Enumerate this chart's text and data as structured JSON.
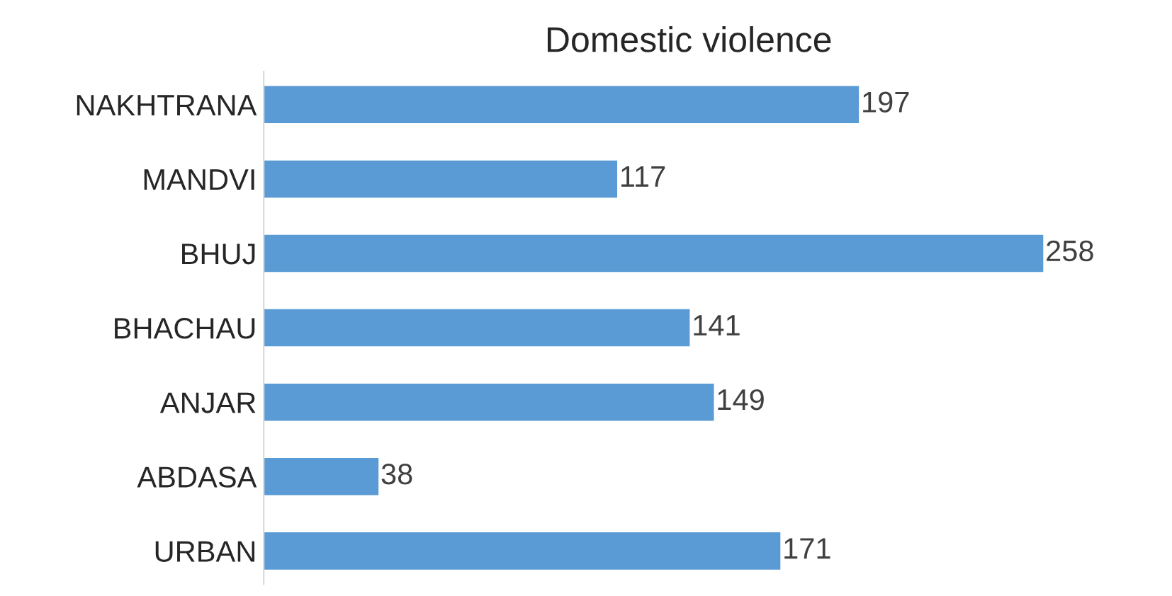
{
  "chart_data": {
    "type": "bar",
    "orientation": "horizontal",
    "title": "Domestic violence",
    "categories": [
      "NAKHTRANA",
      "MANDVI",
      "BHUJ",
      "BHACHAU",
      "ANJAR",
      "ABDASA",
      "URBAN"
    ],
    "values": [
      197,
      117,
      258,
      141,
      149,
      38,
      171
    ],
    "color": "#5b9bd5",
    "data_labels": true,
    "tick_labels": "y",
    "grid": false,
    "legend": false
  }
}
